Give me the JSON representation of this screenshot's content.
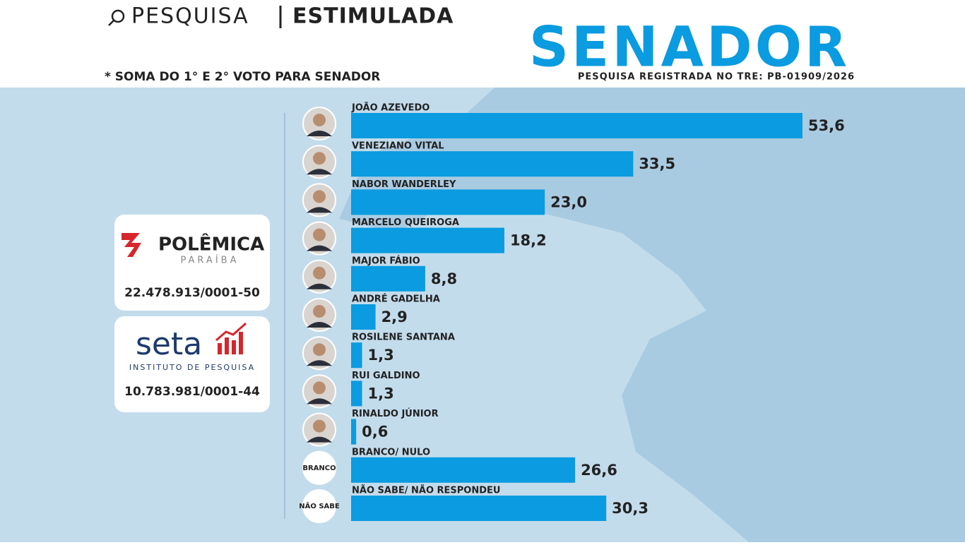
{
  "header": {
    "search": "PESQUISA",
    "kind": "ESTIMULADA",
    "note": "* SOMA DO 1° E 2° VOTO PARA SENADOR",
    "office": "SENADOR",
    "registry": "PESQUISA REGISTRADA NO TRE: PB-01909/2026"
  },
  "sponsors": [
    {
      "name": "POLÊMICA",
      "sub": "PARAÍBA",
      "id": "22.478.913/0001-50"
    },
    {
      "name": "seta",
      "sub": "INSTITUTO DE PESQUISA",
      "id": "10.783.981/0001-44"
    }
  ],
  "badges": [
    "BRANCO",
    "NÃO SABE"
  ],
  "chart_data": {
    "type": "bar",
    "orientation": "horizontal",
    "color": "#0a9be0",
    "categories": [
      "JOÃO AZEVEDO",
      "VENEZIANO VITAL",
      "NABOR WANDERLEY",
      "MARCELO QUEIROGA",
      "MAJOR FÁBIO",
      "ANDRÉ GADELHA",
      "ROSILENE SANTANA",
      "RUI GALDINO",
      "RINALDO JÚNIOR",
      "BRANCO/ NULO",
      "NÃO SABE/ NÃO RESPONDEU"
    ],
    "values": [
      53.6,
      33.5,
      23.0,
      18.2,
      8.8,
      2.9,
      1.3,
      1.3,
      0.6,
      26.6,
      30.3
    ],
    "value_labels": [
      "53,6",
      "33,5",
      "23,0",
      "18,2",
      "8,8",
      "2,9",
      "1,3",
      "1,3",
      "0,6",
      "26,6",
      "30,3"
    ]
  }
}
